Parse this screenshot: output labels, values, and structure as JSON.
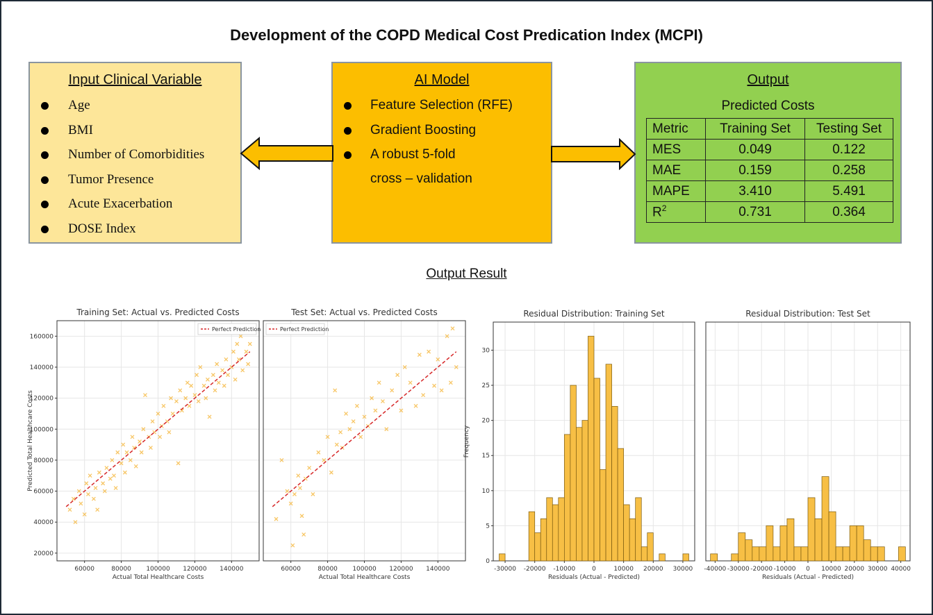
{
  "title": "Development of the COPD Medical Cost Predication Index (MCPI)",
  "input": {
    "heading": "Input Clinical Variable",
    "items": [
      "Age",
      "BMI",
      "Number of Comorbidities",
      "Tumor Presence",
      "Acute Exacerbation",
      "DOSE Index"
    ]
  },
  "ai": {
    "heading": "AI Model",
    "items": [
      "Feature Selection (RFE)",
      "Gradient Boosting",
      "A robust 5-fold"
    ],
    "continuation": "cross – validation"
  },
  "output": {
    "heading": "Output",
    "subheading": "Predicted Costs",
    "table": {
      "headers": [
        "Metric",
        "Training Set",
        "Testing Set"
      ],
      "rows": [
        [
          "MES",
          "0.049",
          "0.122"
        ],
        [
          "MAE",
          "0.159",
          "0.258"
        ],
        [
          "MAPE",
          "3.410",
          "5.491"
        ],
        [
          "R",
          "0.731",
          "0.364"
        ]
      ],
      "r_superscript": "2"
    }
  },
  "output_result_label": "Output Result",
  "colors": {
    "input_box": "#fde699",
    "ai_box": "#fcbe00",
    "output_box": "#92d050",
    "arrow": "#fcbe00",
    "marker": "#f5b433",
    "fit_line": "#d62728"
  },
  "chart_data": [
    {
      "type": "scatter",
      "title": "Training Set: Actual vs. Predicted Costs",
      "xlabel": "Actual Total Healthcare Costs",
      "ylabel": "Predicted Total Healthcare Costs",
      "xlim": [
        45000,
        155000
      ],
      "ylim": [
        15000,
        170000
      ],
      "xticks": [
        60000,
        80000,
        100000,
        120000,
        140000
      ],
      "yticks": [
        20000,
        40000,
        60000,
        80000,
        100000,
        120000,
        140000,
        160000
      ],
      "legend": "Perfect Prediction",
      "line": [
        [
          50000,
          50000
        ],
        [
          150000,
          150000
        ]
      ],
      "points": [
        [
          52000,
          48000
        ],
        [
          54000,
          55000
        ],
        [
          55000,
          40000
        ],
        [
          57000,
          60000
        ],
        [
          58000,
          52000
        ],
        [
          60000,
          45000
        ],
        [
          61000,
          65000
        ],
        [
          62000,
          58000
        ],
        [
          63000,
          70000
        ],
        [
          65000,
          55000
        ],
        [
          66000,
          62000
        ],
        [
          67000,
          48000
        ],
        [
          68000,
          72000
        ],
        [
          70000,
          65000
        ],
        [
          71000,
          60000
        ],
        [
          72000,
          75000
        ],
        [
          74000,
          68000
        ],
        [
          75000,
          80000
        ],
        [
          76000,
          70000
        ],
        [
          77000,
          62000
        ],
        [
          78000,
          85000
        ],
        [
          80000,
          78000
        ],
        [
          81000,
          90000
        ],
        [
          82000,
          72000
        ],
        [
          83000,
          85000
        ],
        [
          85000,
          80000
        ],
        [
          86000,
          95000
        ],
        [
          87000,
          88000
        ],
        [
          88000,
          76000
        ],
        [
          90000,
          92000
        ],
        [
          91000,
          85000
        ],
        [
          92000,
          100000
        ],
        [
          93000,
          122000
        ],
        [
          95000,
          95000
        ],
        [
          96000,
          88000
        ],
        [
          97000,
          105000
        ],
        [
          98000,
          98000
        ],
        [
          100000,
          110000
        ],
        [
          101000,
          95000
        ],
        [
          102000,
          102000
        ],
        [
          103000,
          115000
        ],
        [
          105000,
          105000
        ],
        [
          106000,
          98000
        ],
        [
          107000,
          120000
        ],
        [
          108000,
          110000
        ],
        [
          110000,
          118000
        ],
        [
          111000,
          78000
        ],
        [
          112000,
          125000
        ],
        [
          113000,
          112000
        ],
        [
          115000,
          120000
        ],
        [
          116000,
          130000
        ],
        [
          117000,
          115000
        ],
        [
          118000,
          128000
        ],
        [
          120000,
          122000
        ],
        [
          121000,
          135000
        ],
        [
          122000,
          118000
        ],
        [
          123000,
          140000
        ],
        [
          125000,
          128000
        ],
        [
          126000,
          120000
        ],
        [
          127000,
          132000
        ],
        [
          128000,
          108000
        ],
        [
          130000,
          135000
        ],
        [
          131000,
          125000
        ],
        [
          132000,
          142000
        ],
        [
          133000,
          130000
        ],
        [
          135000,
          138000
        ],
        [
          136000,
          128000
        ],
        [
          137000,
          145000
        ],
        [
          138000,
          135000
        ],
        [
          140000,
          140000
        ],
        [
          141000,
          150000
        ],
        [
          142000,
          132000
        ],
        [
          143000,
          155000
        ],
        [
          144000,
          145000
        ],
        [
          145000,
          160000
        ],
        [
          146000,
          138000
        ],
        [
          147000,
          165000
        ],
        [
          148000,
          150000
        ],
        [
          149000,
          142000
        ],
        [
          150000,
          155000
        ]
      ]
    },
    {
      "type": "scatter",
      "title": "Test Set: Actual vs. Predicted Costs",
      "xlabel": "Actual Total Healthcare Costs",
      "ylabel": "",
      "xlim": [
        45000,
        155000
      ],
      "ylim": [
        15000,
        170000
      ],
      "xticks": [
        60000,
        80000,
        100000,
        120000,
        140000
      ],
      "legend": "Perfect Prediction",
      "line": [
        [
          50000,
          50000
        ],
        [
          150000,
          150000
        ]
      ],
      "points": [
        [
          52000,
          42000
        ],
        [
          55000,
          80000
        ],
        [
          58000,
          60000
        ],
        [
          60000,
          52000
        ],
        [
          61000,
          25000
        ],
        [
          62000,
          58000
        ],
        [
          64000,
          70000
        ],
        [
          65000,
          62000
        ],
        [
          66000,
          44000
        ],
        [
          67000,
          32000
        ],
        [
          68000,
          68000
        ],
        [
          70000,
          75000
        ],
        [
          72000,
          58000
        ],
        [
          75000,
          85000
        ],
        [
          78000,
          80000
        ],
        [
          80000,
          95000
        ],
        [
          82000,
          72000
        ],
        [
          84000,
          125000
        ],
        [
          85000,
          90000
        ],
        [
          87000,
          98000
        ],
        [
          88000,
          88000
        ],
        [
          90000,
          110000
        ],
        [
          92000,
          100000
        ],
        [
          94000,
          105000
        ],
        [
          96000,
          115000
        ],
        [
          98000,
          95000
        ],
        [
          100000,
          108000
        ],
        [
          102000,
          102000
        ],
        [
          104000,
          120000
        ],
        [
          106000,
          112000
        ],
        [
          108000,
          130000
        ],
        [
          110000,
          118000
        ],
        [
          112000,
          100000
        ],
        [
          115000,
          125000
        ],
        [
          118000,
          135000
        ],
        [
          120000,
          112000
        ],
        [
          122000,
          140000
        ],
        [
          125000,
          130000
        ],
        [
          128000,
          115000
        ],
        [
          130000,
          148000
        ],
        [
          132000,
          122000
        ],
        [
          135000,
          150000
        ],
        [
          138000,
          128000
        ],
        [
          140000,
          145000
        ],
        [
          142000,
          125000
        ],
        [
          145000,
          160000
        ],
        [
          147000,
          130000
        ],
        [
          148000,
          165000
        ],
        [
          150000,
          140000
        ]
      ]
    },
    {
      "type": "bar",
      "title": "Residual Distribution: Training Set",
      "xlabel": "Residuals (Actual - Predicted)",
      "ylabel": "Frequency",
      "xlim": [
        -34000,
        34000
      ],
      "ylim": [
        0,
        34
      ],
      "xticks": [
        -30000,
        -20000,
        -10000,
        0,
        10000,
        20000,
        30000
      ],
      "yticks": [
        0,
        5,
        10,
        15,
        20,
        25,
        30
      ],
      "bin_edges": [
        -32000,
        -30000,
        -28000,
        -26000,
        -24000,
        -22000,
        -20000,
        -18000,
        -16000,
        -14000,
        -12000,
        -10000,
        -8000,
        -6000,
        -4000,
        -2000,
        0,
        2000,
        4000,
        6000,
        8000,
        10000,
        12000,
        14000,
        16000,
        18000,
        20000,
        22000,
        24000,
        26000,
        28000,
        30000,
        32000
      ],
      "values": [
        1,
        0,
        0,
        0,
        0,
        7,
        4,
        6,
        9,
        8,
        9,
        18,
        25,
        19,
        20,
        32,
        26,
        13,
        28,
        22,
        16,
        8,
        6,
        9,
        2,
        4,
        0,
        1,
        0,
        0,
        0,
        1
      ]
    },
    {
      "type": "bar",
      "title": "Residual Distribution: Test Set",
      "xlabel": "Residuals (Actual - Predicted)",
      "ylabel": "",
      "xlim": [
        -44000,
        44000
      ],
      "ylim": [
        0,
        34
      ],
      "xticks": [
        -40000,
        -30000,
        -20000,
        -10000,
        0,
        10000,
        20000,
        30000,
        40000
      ],
      "bin_edges": [
        -42000,
        -39000,
        -36000,
        -33000,
        -30000,
        -27000,
        -24000,
        -21000,
        -18000,
        -15000,
        -12000,
        -9000,
        -6000,
        -3000,
        0,
        3000,
        6000,
        9000,
        12000,
        15000,
        18000,
        21000,
        24000,
        27000,
        30000,
        33000,
        36000,
        39000,
        42000
      ],
      "values": [
        1,
        0,
        0,
        1,
        4,
        3,
        2,
        2,
        5,
        2,
        5,
        6,
        2,
        2,
        9,
        6,
        12,
        7,
        2,
        2,
        5,
        5,
        3,
        2,
        2,
        0,
        0,
        2
      ]
    }
  ]
}
